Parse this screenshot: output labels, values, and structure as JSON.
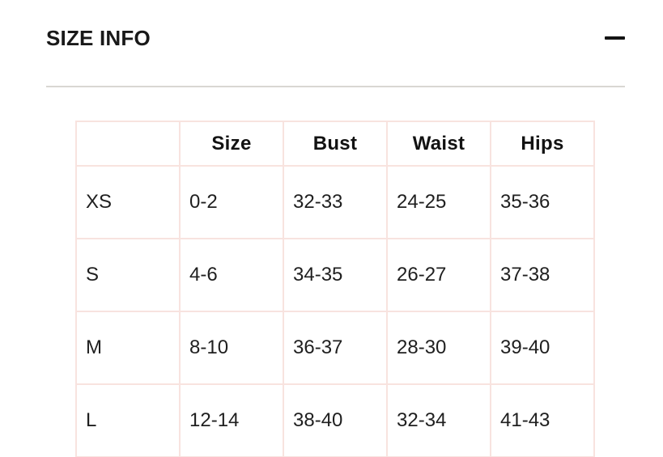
{
  "accordion": {
    "title": "SIZE INFO",
    "collapse_icon": "minus",
    "state": "expanded"
  },
  "size_table": {
    "headers": [
      "",
      "Size",
      "Bust",
      "Waist",
      "Hips"
    ],
    "rows": [
      [
        "XS",
        "0-2",
        "32-33",
        "24-25",
        "35-36"
      ],
      [
        "S",
        "4-6",
        "34-35",
        "26-27",
        "37-38"
      ],
      [
        "M",
        "8-10",
        "36-37",
        "28-30",
        "39-40"
      ],
      [
        "L",
        "12-14",
        "38-40",
        "32-34",
        "41-43"
      ]
    ]
  },
  "colors": {
    "title_text": "#191919",
    "body_text": "#1f1f1f",
    "table_border": "#f8e3df",
    "divider": "#d9d7d3",
    "background": "#ffffff"
  }
}
